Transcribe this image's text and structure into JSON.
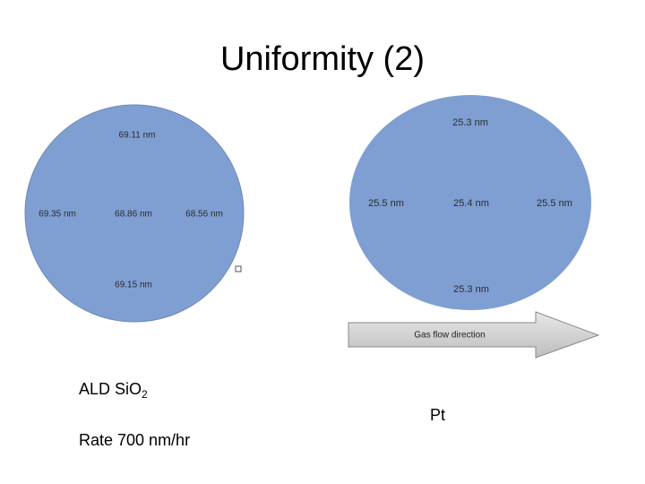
{
  "title": "Uniformity (2)",
  "left_wafer": {
    "measurements": [
      "69.11 nm",
      "69.35 nm",
      "68.86 nm",
      "68.56 nm",
      "69.15 nm"
    ]
  },
  "right_wafer": {
    "measurements": [
      "25.3 nm",
      "25.5 nm",
      "25.4 nm",
      "25.5 nm",
      "25.3 nm"
    ],
    "arrow_label": "Gas flow direction"
  },
  "left_caption": {
    "material": "ALD SiO",
    "subscript": "2",
    "rate": "Rate 700 nm/hr"
  },
  "right_caption": "Pt"
}
